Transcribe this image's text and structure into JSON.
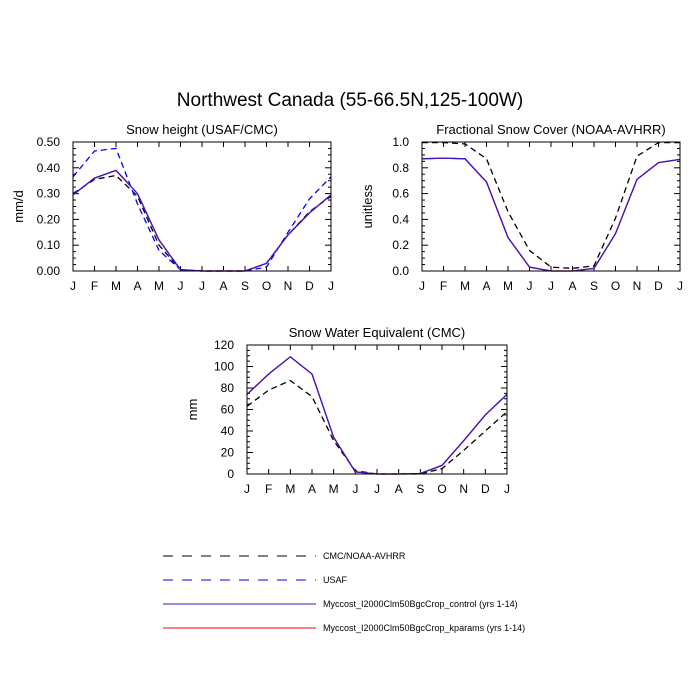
{
  "figure_title": "Northwest Canada (55-66.5N,125-100W)",
  "legend": [
    {
      "label": "CMC/NOAA-AVHRR",
      "style": "dash",
      "color": "#000000"
    },
    {
      "label": "USAF",
      "style": "dash",
      "color": "#0000ff"
    },
    {
      "label": "Myccost_I2000Clm50BgcCrop_control (yrs 1-14)",
      "style": "solid",
      "color": "#3a17c4"
    },
    {
      "label": "Myccost_I2000Clm50BgcCrop_kparams (yrs 1-14)",
      "style": "solid",
      "color": "#ff0000"
    }
  ],
  "chart_data": [
    {
      "type": "line",
      "title": "Snow height (USAF/CMC)",
      "ylabel": "mm/d",
      "xlabel": "",
      "x": [
        "J",
        "F",
        "M",
        "A",
        "M",
        "J",
        "J",
        "A",
        "S",
        "O",
        "N",
        "D",
        "J"
      ],
      "ylim": [
        0,
        0.5
      ],
      "yticks": [
        "0.00",
        "0.10",
        "0.20",
        "0.30",
        "0.40",
        "0.50"
      ],
      "series": [
        {
          "name": "CMC/NOAA-AVHRR",
          "style": "dash",
          "color": "#000000",
          "values": [
            0.3,
            0.355,
            0.37,
            0.29,
            0.1,
            0.005,
            0.0,
            0.0,
            0.0,
            0.03,
            0.14,
            0.23,
            0.29
          ]
        },
        {
          "name": "USAF",
          "style": "dash",
          "color": "#0000ff",
          "values": [
            0.365,
            0.465,
            0.475,
            0.26,
            0.08,
            0.005,
            0.0,
            0.0,
            0.0,
            0.015,
            0.15,
            0.28,
            0.365
          ]
        },
        {
          "name": "Myccost_I2000Clm50BgcCrop_kparams (yrs 1-14)",
          "style": "solid",
          "color": "#ff0000",
          "values": [
            0.295,
            0.36,
            0.39,
            0.3,
            0.12,
            0.005,
            0.0,
            0.0,
            0.0,
            0.03,
            0.14,
            0.225,
            0.295
          ]
        },
        {
          "name": "Myccost_I2000Clm50BgcCrop_control (yrs 1-14)",
          "style": "solid",
          "color": "#3a17c4",
          "values": [
            0.295,
            0.36,
            0.39,
            0.3,
            0.12,
            0.005,
            0.0,
            0.0,
            0.0,
            0.03,
            0.14,
            0.225,
            0.295
          ]
        }
      ]
    },
    {
      "type": "line",
      "title": "Fractional Snow Cover (NOAA-AVHRR)",
      "ylabel": "unitless",
      "xlabel": "",
      "x": [
        "J",
        "F",
        "M",
        "A",
        "M",
        "J",
        "J",
        "A",
        "S",
        "O",
        "N",
        "D",
        "J"
      ],
      "ylim": [
        0,
        1.0
      ],
      "yticks": [
        "0.0",
        "0.2",
        "0.4",
        "0.6",
        "0.8",
        "1.0"
      ],
      "series": [
        {
          "name": "CMC/NOAA-AVHRR",
          "style": "dash",
          "color": "#000000",
          "values": [
            0.995,
            0.995,
            0.985,
            0.87,
            0.46,
            0.16,
            0.03,
            0.02,
            0.04,
            0.41,
            0.89,
            0.995,
            0.995
          ]
        },
        {
          "name": "Myccost_I2000Clm50BgcCrop_kparams (yrs 1-14)",
          "style": "solid",
          "color": "#ff0000",
          "values": [
            0.87,
            0.875,
            0.87,
            0.69,
            0.26,
            0.03,
            0.0,
            0.0,
            0.02,
            0.29,
            0.71,
            0.84,
            0.865
          ]
        },
        {
          "name": "Myccost_I2000Clm50BgcCrop_control (yrs 1-14)",
          "style": "solid",
          "color": "#3a17c4",
          "values": [
            0.87,
            0.875,
            0.87,
            0.69,
            0.26,
            0.03,
            0.0,
            0.0,
            0.02,
            0.29,
            0.71,
            0.84,
            0.865
          ]
        }
      ]
    },
    {
      "type": "line",
      "title": "Snow Water Equivalent (CMC)",
      "ylabel": "mm",
      "xlabel": "",
      "x": [
        "J",
        "F",
        "M",
        "A",
        "M",
        "J",
        "J",
        "A",
        "S",
        "O",
        "N",
        "D",
        "J"
      ],
      "ylim": [
        0,
        120
      ],
      "yticks": [
        "0",
        "20",
        "40",
        "60",
        "80",
        "100",
        "120"
      ],
      "series": [
        {
          "name": "CMC/NOAA-AVHRR",
          "style": "dash",
          "color": "#000000",
          "values": [
            63,
            78,
            87,
            72,
            31,
            3,
            0,
            0,
            0,
            5,
            22,
            40,
            58
          ]
        },
        {
          "name": "Myccost_I2000Clm50BgcCrop_kparams (yrs 1-14)",
          "style": "solid",
          "color": "#ff0000",
          "values": [
            74,
            93,
            109,
            93,
            34,
            2,
            0,
            0,
            0.5,
            8,
            31,
            55,
            74
          ]
        },
        {
          "name": "Myccost_I2000Clm50BgcCrop_control (yrs 1-14)",
          "style": "solid",
          "color": "#3a17c4",
          "values": [
            74,
            93,
            109,
            93,
            34,
            2,
            0,
            0,
            0.5,
            8,
            31,
            55,
            74
          ]
        }
      ]
    }
  ]
}
